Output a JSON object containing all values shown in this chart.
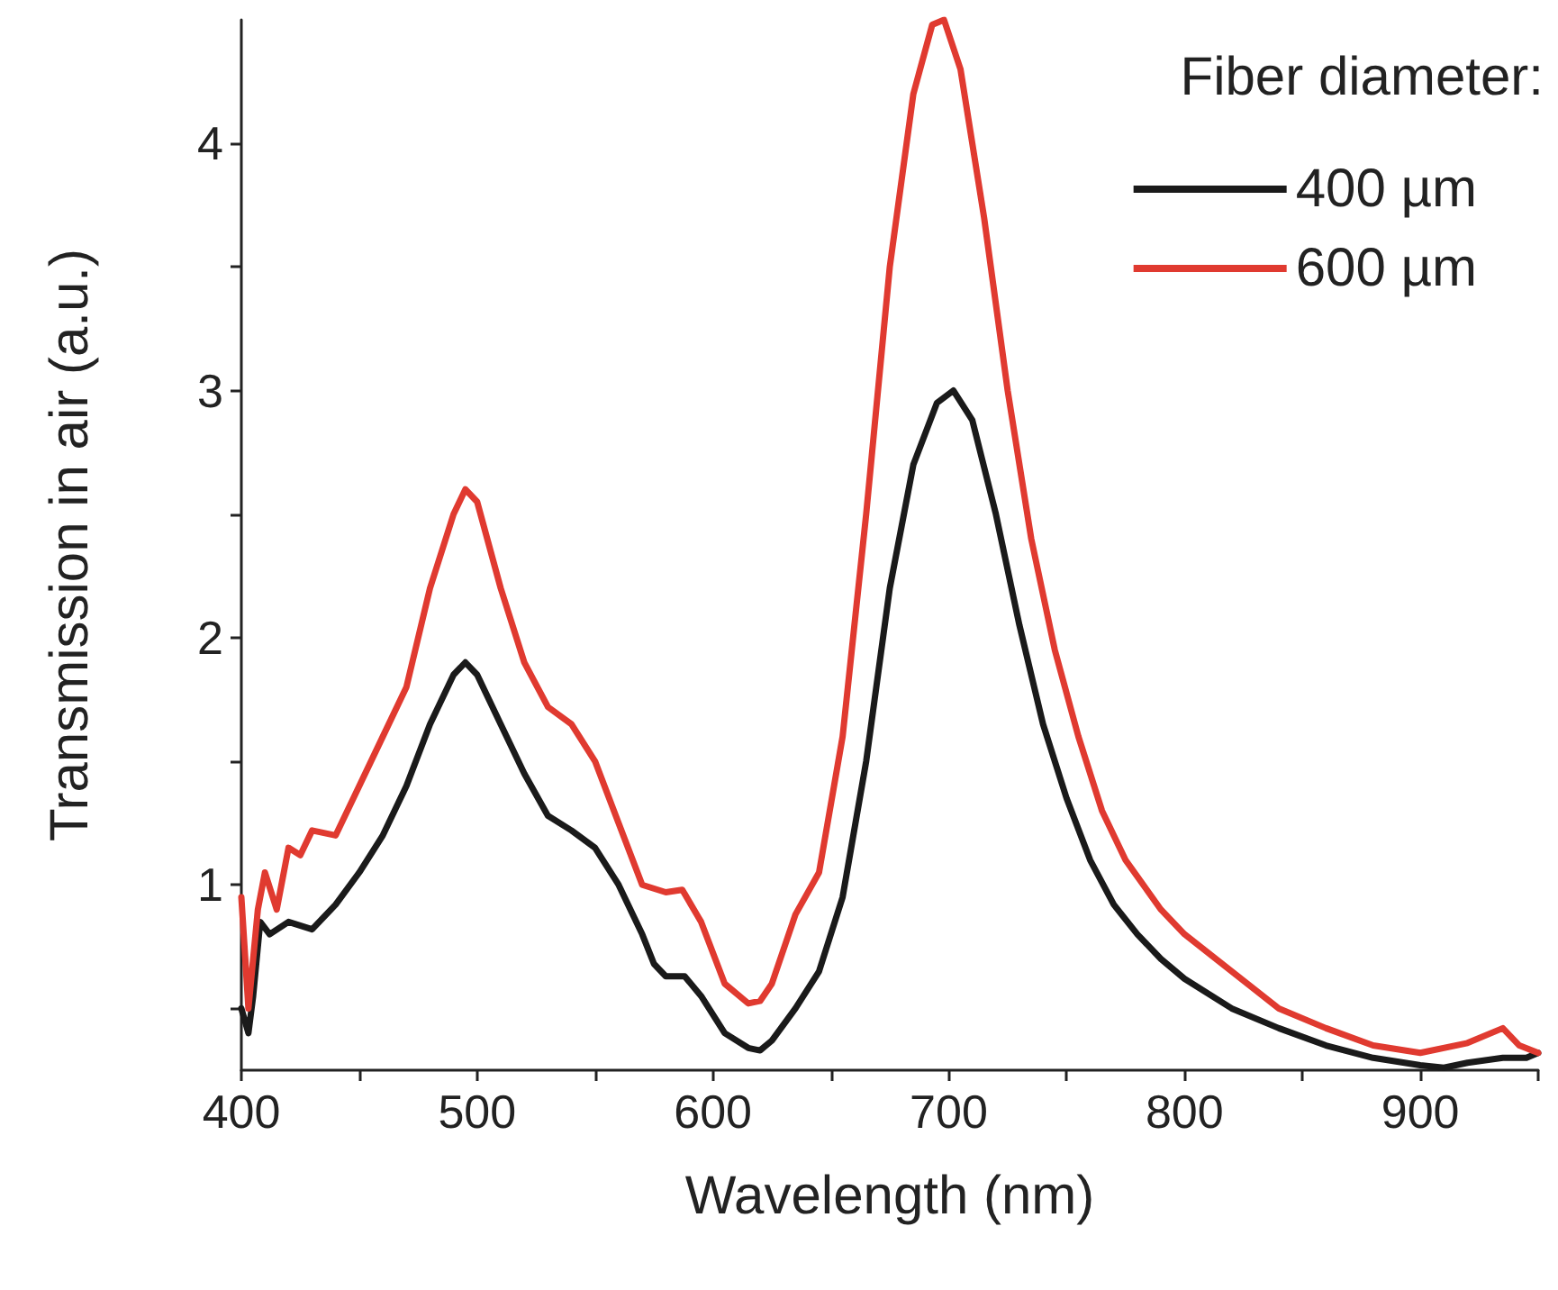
{
  "chart_data": {
    "type": "line",
    "xlabel": "Wavelength (nm)",
    "ylabel": "Transmission in air (a.u.)",
    "legend_title": "Fiber diameter:",
    "legend": "top right",
    "marker": "none",
    "line_style": "solid",
    "grid": false,
    "xlim": [
      400,
      950
    ],
    "xticks": [
      400,
      {
        "value": 450,
        "label": null
      },
      500,
      {
        "value": 550,
        "label": null
      },
      600,
      {
        "value": 650,
        "label": null
      },
      700,
      {
        "value": 750,
        "label": null
      },
      800,
      {
        "value": 850,
        "label": null
      },
      900,
      {
        "value": 950,
        "label": null
      }
    ],
    "ylim": [
      0.25,
      4.5
    ],
    "yticks": [
      {
        "value": 0.5,
        "label": null
      },
      1,
      {
        "value": 1.5,
        "label": null
      },
      2,
      {
        "value": 2.5,
        "label": null
      },
      3,
      {
        "value": 3.5,
        "label": null
      },
      4
    ],
    "series": [
      {
        "name": "400 µm",
        "color": "#1a1a1a",
        "x": [
          400,
          403,
          405,
          408,
          412,
          420,
          430,
          440,
          450,
          460,
          470,
          480,
          490,
          495,
          500,
          510,
          520,
          530,
          540,
          550,
          560,
          570,
          575,
          580,
          588,
          595,
          605,
          615,
          620,
          625,
          635,
          645,
          655,
          665,
          675,
          685,
          695,
          702,
          710,
          720,
          730,
          740,
          750,
          760,
          770,
          780,
          790,
          800,
          820,
          840,
          860,
          880,
          900,
          910,
          920,
          935,
          945,
          950
        ],
        "values": [
          0.5,
          0.4,
          0.55,
          0.85,
          0.8,
          0.85,
          0.82,
          0.92,
          1.05,
          1.2,
          1.4,
          1.65,
          1.85,
          1.9,
          1.85,
          1.65,
          1.45,
          1.28,
          1.22,
          1.15,
          1.0,
          0.8,
          0.68,
          0.63,
          0.63,
          0.55,
          0.4,
          0.34,
          0.33,
          0.37,
          0.5,
          0.65,
          0.95,
          1.5,
          2.2,
          2.7,
          2.95,
          3.0,
          2.88,
          2.5,
          2.05,
          1.65,
          1.35,
          1.1,
          0.92,
          0.8,
          0.7,
          0.62,
          0.5,
          0.42,
          0.35,
          0.3,
          0.27,
          0.26,
          0.28,
          0.3,
          0.3,
          0.32
        ]
      },
      {
        "name": "600 µm",
        "color": "#e03a30",
        "x": [
          400,
          403,
          407,
          410,
          415,
          420,
          425,
          430,
          440,
          450,
          460,
          470,
          480,
          490,
          495,
          500,
          510,
          520,
          530,
          540,
          550,
          560,
          570,
          580,
          587,
          595,
          605,
          615,
          620,
          625,
          635,
          645,
          655,
          665,
          675,
          685,
          693,
          698,
          705,
          715,
          725,
          735,
          745,
          755,
          765,
          775,
          790,
          800,
          820,
          840,
          860,
          880,
          900,
          920,
          935,
          942,
          950
        ],
        "values": [
          0.95,
          0.5,
          0.9,
          1.05,
          0.9,
          1.15,
          1.12,
          1.22,
          1.2,
          1.4,
          1.6,
          1.8,
          2.2,
          2.5,
          2.6,
          2.55,
          2.2,
          1.9,
          1.72,
          1.65,
          1.5,
          1.25,
          1.0,
          0.97,
          0.98,
          0.85,
          0.6,
          0.52,
          0.53,
          0.6,
          0.88,
          1.05,
          1.6,
          2.5,
          3.5,
          4.2,
          4.48,
          4.5,
          4.3,
          3.7,
          3.0,
          2.4,
          1.95,
          1.6,
          1.3,
          1.1,
          0.9,
          0.8,
          0.65,
          0.5,
          0.42,
          0.35,
          0.32,
          0.36,
          0.42,
          0.35,
          0.32
        ]
      }
    ]
  }
}
